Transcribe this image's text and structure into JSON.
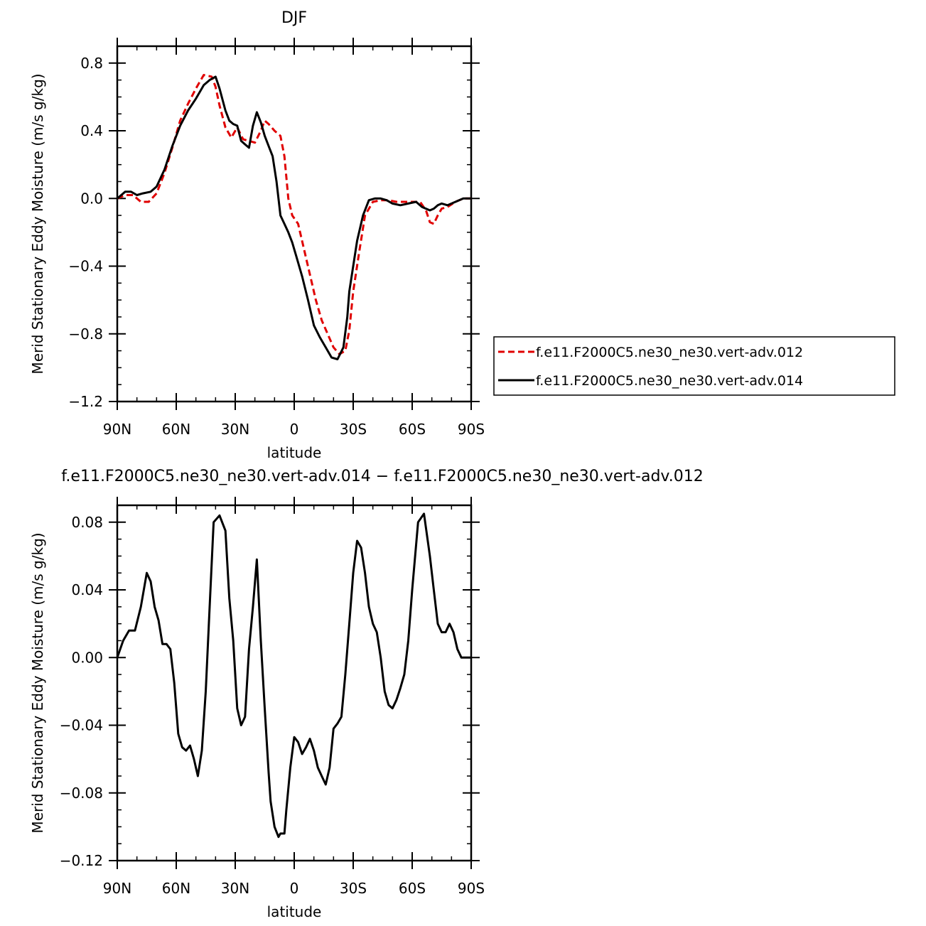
{
  "chart_data": [
    {
      "type": "line",
      "title": "DJF",
      "xlabel": "latitude",
      "ylabel": "Merid Stationary Eddy Moisture (m/s g/kg)",
      "x_tick_labels": [
        "90N",
        "60N",
        "30N",
        "0",
        "30S",
        "60S",
        "90S"
      ],
      "x_tick_values": [
        90,
        60,
        30,
        0,
        -30,
        -60,
        -90
      ],
      "xlim": [
        90,
        -90
      ],
      "ylim": [
        -1.2,
        0.9
      ],
      "y_tick_labels": [
        "0.8",
        "0.4",
        "0.0",
        "−0.4",
        "−0.8",
        "−1.2"
      ],
      "y_tick_values": [
        0.8,
        0.4,
        0.0,
        -0.4,
        -0.8,
        -1.2
      ],
      "grid": false,
      "legend_position": "right",
      "series": [
        {
          "name": "f.e11.F2000C5.ne30_ne30.vert-adv.012",
          "color": "#e00000",
          "dash": "dashed",
          "x": [
            90,
            86,
            82,
            78,
            74,
            70,
            66,
            62,
            58,
            54,
            50,
            46,
            42,
            40,
            38,
            35,
            32,
            29,
            26,
            23,
            20,
            17,
            15,
            13,
            10,
            7,
            5,
            3,
            1,
            -2,
            -5,
            -8,
            -11,
            -14,
            -17,
            -20,
            -23,
            -26,
            -28,
            -30,
            -33,
            -36,
            -40,
            -44,
            -48,
            -52,
            -56,
            -60,
            -64,
            -67,
            -69,
            -71,
            -73,
            -75,
            -78,
            -82,
            -86,
            -90
          ],
          "y": [
            0.0,
            0.02,
            0.02,
            -0.02,
            -0.02,
            0.03,
            0.15,
            0.3,
            0.46,
            0.56,
            0.65,
            0.73,
            0.72,
            0.66,
            0.55,
            0.42,
            0.36,
            0.42,
            0.35,
            0.34,
            0.33,
            0.4,
            0.46,
            0.44,
            0.4,
            0.37,
            0.25,
            0.0,
            -0.1,
            -0.15,
            -0.3,
            -0.45,
            -0.6,
            -0.72,
            -0.8,
            -0.88,
            -0.92,
            -0.9,
            -0.78,
            -0.55,
            -0.32,
            -0.1,
            -0.02,
            -0.01,
            -0.01,
            -0.02,
            -0.02,
            -0.02,
            -0.02,
            -0.07,
            -0.14,
            -0.15,
            -0.1,
            -0.06,
            -0.05,
            -0.02,
            0.0,
            0.0
          ]
        },
        {
          "name": "f.e11.F2000C5.ne30_ne30.vert-adv.014",
          "color": "#000000",
          "dash": "solid",
          "x": [
            90,
            86,
            83,
            80,
            77,
            73,
            70,
            66,
            62,
            58,
            54,
            50,
            46,
            43,
            40,
            38,
            35,
            33,
            31,
            29,
            27,
            25,
            23,
            21,
            19,
            17,
            15,
            13,
            11,
            9,
            7,
            5,
            3,
            1,
            -1,
            -4,
            -7,
            -10,
            -13,
            -16,
            -19,
            -22,
            -25,
            -27,
            -28,
            -30,
            -32,
            -35,
            -38,
            -41,
            -44,
            -47,
            -50,
            -54,
            -58,
            -62,
            -65,
            -67,
            -69,
            -71,
            -73,
            -75,
            -78,
            -82,
            -86,
            -90
          ],
          "y": [
            0.0,
            0.04,
            0.04,
            0.02,
            0.03,
            0.04,
            0.07,
            0.17,
            0.31,
            0.43,
            0.52,
            0.59,
            0.67,
            0.7,
            0.72,
            0.65,
            0.52,
            0.46,
            0.44,
            0.43,
            0.34,
            0.32,
            0.3,
            0.43,
            0.51,
            0.45,
            0.37,
            0.31,
            0.25,
            0.1,
            -0.1,
            -0.15,
            -0.2,
            -0.26,
            -0.34,
            -0.46,
            -0.6,
            -0.75,
            -0.82,
            -0.88,
            -0.94,
            -0.95,
            -0.88,
            -0.7,
            -0.55,
            -0.4,
            -0.25,
            -0.1,
            -0.01,
            0.0,
            0.0,
            -0.01,
            -0.03,
            -0.04,
            -0.03,
            -0.02,
            -0.05,
            -0.06,
            -0.07,
            -0.06,
            -0.04,
            -0.03,
            -0.04,
            -0.02,
            0.0,
            0.0
          ]
        }
      ]
    },
    {
      "type": "line",
      "title": "f.e11.F2000C5.ne30_ne30.vert-adv.014 − f.e11.F2000C5.ne30_ne30.vert-adv.012",
      "xlabel": "latitude",
      "ylabel": "Merid Stationary Eddy Moisture (m/s g/kg)",
      "x_tick_labels": [
        "90N",
        "60N",
        "30N",
        "0",
        "30S",
        "60S",
        "90S"
      ],
      "x_tick_values": [
        90,
        60,
        30,
        0,
        -30,
        -60,
        -90
      ],
      "xlim": [
        90,
        -90
      ],
      "ylim": [
        -0.12,
        0.09
      ],
      "y_tick_labels": [
        "0.08",
        "0.04",
        "0.00",
        "−0.04",
        "−0.08",
        "−0.12"
      ],
      "y_tick_values": [
        0.08,
        0.04,
        0.0,
        -0.04,
        -0.08,
        -0.12
      ],
      "grid": false,
      "series": [
        {
          "color": "#000000",
          "dash": "solid",
          "x": [
            90,
            87,
            84,
            81,
            78,
            75,
            73,
            71,
            69,
            67,
            65,
            63,
            61,
            59,
            57,
            55,
            53,
            51,
            49,
            47,
            45,
            43,
            41,
            38,
            35,
            33,
            31,
            29,
            27,
            25,
            23,
            21,
            19,
            17,
            15,
            13,
            12,
            10,
            8,
            7,
            5,
            4,
            2,
            0,
            -2,
            -4,
            -6,
            -8,
            -10,
            -12,
            -14,
            -16,
            -18,
            -20,
            -22,
            -24,
            -26,
            -28,
            -30,
            -32,
            -34,
            -36,
            -38,
            -40,
            -42,
            -44,
            -46,
            -48,
            -50,
            -52,
            -54,
            -56,
            -58,
            -60,
            -63,
            -66,
            -69,
            -71,
            -73,
            -75,
            -77,
            -79,
            -81,
            -83,
            -85,
            -87,
            -90
          ],
          "y": [
            0.0,
            0.01,
            0.016,
            0.016,
            0.03,
            0.05,
            0.045,
            0.03,
            0.022,
            0.008,
            0.008,
            0.005,
            -0.015,
            -0.045,
            -0.053,
            -0.055,
            -0.052,
            -0.06,
            -0.07,
            -0.055,
            -0.02,
            0.03,
            0.08,
            0.084,
            0.075,
            0.035,
            0.01,
            -0.03,
            -0.04,
            -0.035,
            0.005,
            0.03,
            0.058,
            0.01,
            -0.03,
            -0.068,
            -0.085,
            -0.1,
            -0.106,
            -0.104,
            -0.104,
            -0.09,
            -0.065,
            -0.047,
            -0.05,
            -0.057,
            -0.053,
            -0.048,
            -0.055,
            -0.065,
            -0.07,
            -0.075,
            -0.065,
            -0.042,
            -0.039,
            -0.035,
            -0.01,
            0.02,
            0.05,
            0.069,
            0.065,
            0.05,
            0.03,
            0.02,
            0.015,
            0.0,
            -0.02,
            -0.028,
            -0.03,
            -0.025,
            -0.018,
            -0.01,
            0.01,
            0.04,
            0.08,
            0.085,
            0.06,
            0.04,
            0.02,
            0.015,
            0.015,
            0.02,
            0.015,
            0.005,
            0.0,
            0.0,
            0.0
          ]
        }
      ]
    }
  ]
}
